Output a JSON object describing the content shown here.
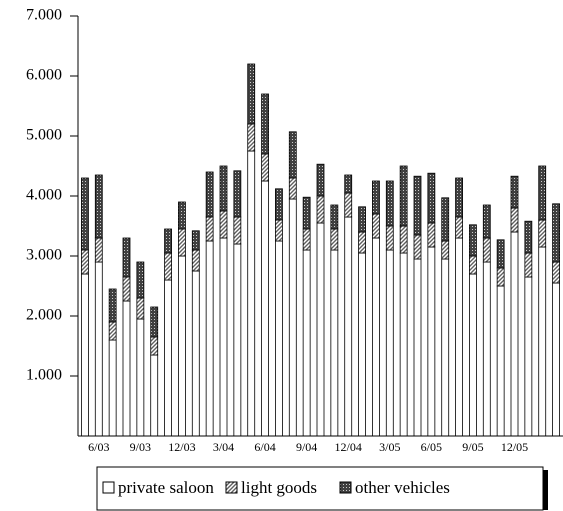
{
  "chart_data": {
    "type": "bar",
    "stacked": true,
    "categories": [
      null,
      "6/03",
      null,
      null,
      "9/03",
      null,
      null,
      "12/03",
      null,
      null,
      "3/04",
      null,
      null,
      "6/04",
      null,
      null,
      "9/04",
      null,
      null,
      "12/04",
      null,
      null,
      "3/05",
      null,
      null,
      "6/05",
      null,
      null,
      "9/05",
      null,
      null,
      "12/05",
      null,
      null,
      null
    ],
    "series": [
      {
        "name": "private saloon",
        "color": "#ffffff",
        "values": [
          2700,
          2900,
          1600,
          2250,
          1950,
          1350,
          2600,
          3000,
          2750,
          3250,
          3300,
          3200,
          4750,
          4250,
          3250,
          3950,
          3100,
          3550,
          3100,
          3650,
          3050,
          3300,
          3100,
          3050,
          2950,
          3150,
          2950,
          3300,
          2700,
          2900,
          2500,
          3400,
          2650,
          3150,
          2550
        ]
      },
      {
        "name": "light goods",
        "color": "#606060",
        "values": [
          400,
          400,
          300,
          400,
          350,
          300,
          450,
          450,
          350,
          400,
          450,
          450,
          450,
          450,
          350,
          350,
          350,
          450,
          350,
          400,
          350,
          400,
          400,
          450,
          400,
          400,
          300,
          350,
          300,
          400,
          300,
          400,
          400,
          450,
          350
        ]
      },
      {
        "name": "other vehicles",
        "color": "#404040",
        "values": [
          1200,
          1050,
          550,
          650,
          600,
          500,
          400,
          450,
          320,
          750,
          750,
          770,
          1000,
          1000,
          520,
          770,
          530,
          530,
          400,
          300,
          420,
          550,
          750,
          1000,
          980,
          830,
          720,
          650,
          520,
          550,
          470,
          530,
          530,
          900,
          970
        ]
      }
    ],
    "ylim": [
      0,
      7000
    ],
    "yticks": [
      {
        "value": 1000,
        "label": "1.000"
      },
      {
        "value": 2000,
        "label": "2.000"
      },
      {
        "value": 3000,
        "label": "3.000"
      },
      {
        "value": 4000,
        "label": "4.000"
      },
      {
        "value": 5000,
        "label": "5.000"
      },
      {
        "value": 6000,
        "label": "6.000"
      },
      {
        "value": 7000,
        "label": "7.000"
      }
    ],
    "legend": "bottom"
  }
}
